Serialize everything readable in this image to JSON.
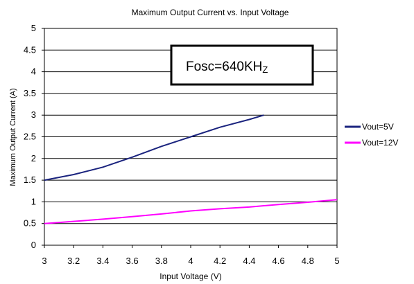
{
  "chart_data": {
    "type": "line",
    "title": "Maximum Output Current vs. Input Voltage",
    "xlabel": "Input Voltage (V)",
    "ylabel": "Maximum Output Current (A)",
    "xlim": [
      3,
      5
    ],
    "ylim": [
      0,
      5
    ],
    "x_ticks": [
      3,
      3.2,
      3.4,
      3.6,
      3.8,
      4,
      4.2,
      4.4,
      4.6,
      4.8,
      5
    ],
    "x_tick_labels": [
      "3",
      "3.2",
      "3.4",
      "3.6",
      "3.8",
      "4",
      "4.2",
      "4.4",
      "4.6",
      "4.8",
      "5"
    ],
    "y_ticks": [
      0,
      0.5,
      1,
      1.5,
      2,
      2.5,
      3,
      3.5,
      4,
      4.5,
      5
    ],
    "y_tick_labels": [
      "0",
      "0.5",
      "1",
      "1.5",
      "2",
      "2.5",
      "3",
      "3.5",
      "4",
      "4.5",
      "5"
    ],
    "grid": "horizontal",
    "legend_position": "right",
    "annotation": {
      "text_main": "Fosc=640KH",
      "text_sub": "Z"
    },
    "series": [
      {
        "name": "Vout=5V",
        "color": "#1a237e",
        "x": [
          3.0,
          3.2,
          3.4,
          3.6,
          3.8,
          4.0,
          4.2,
          4.4,
          4.5
        ],
        "y": [
          1.5,
          1.63,
          1.8,
          2.03,
          2.28,
          2.5,
          2.72,
          2.9,
          3.0
        ]
      },
      {
        "name": "Vout=12V",
        "color": "#ff00ff",
        "x": [
          3.0,
          3.2,
          3.4,
          3.6,
          3.8,
          4.0,
          4.2,
          4.4,
          4.6,
          4.8,
          5.0
        ],
        "y": [
          0.5,
          0.55,
          0.6,
          0.66,
          0.72,
          0.79,
          0.84,
          0.88,
          0.94,
          0.99,
          1.05
        ]
      }
    ]
  }
}
